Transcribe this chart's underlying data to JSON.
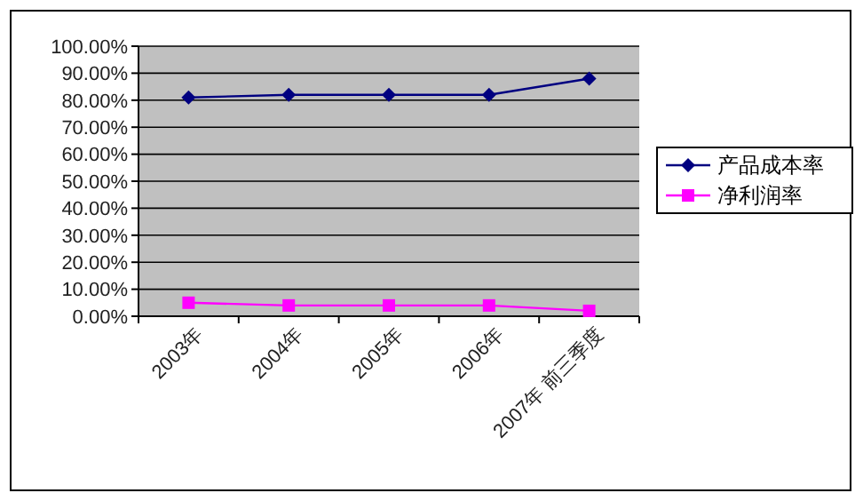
{
  "chart_data": {
    "type": "line",
    "categories": [
      "2003年",
      "2004年",
      "2005年",
      "2006年",
      "2007年 前三季度"
    ],
    "series": [
      {
        "name": "产品成本率",
        "color": "#000080",
        "values": [
          81,
          82,
          82,
          82,
          88
        ],
        "marker": "diamond"
      },
      {
        "name": "净利润率",
        "color": "#ff00ff",
        "values": [
          5,
          4,
          4,
          4,
          2
        ],
        "marker": "square"
      }
    ],
    "ylim": [
      0,
      100
    ],
    "yticks": [
      {
        "value": 0,
        "label": "0.00%"
      },
      {
        "value": 10,
        "label": "10.00%"
      },
      {
        "value": 20,
        "label": "20.00%"
      },
      {
        "value": 30,
        "label": "30.00%"
      },
      {
        "value": 40,
        "label": "40.00%"
      },
      {
        "value": 50,
        "label": "50.00%"
      },
      {
        "value": 60,
        "label": "60.00%"
      },
      {
        "value": 70,
        "label": "70.00%"
      },
      {
        "value": 80,
        "label": "80.00%"
      },
      {
        "value": 90,
        "label": "90.00%"
      },
      {
        "value": 100,
        "label": "100.00%"
      }
    ],
    "grid": "y",
    "legend": "right"
  }
}
